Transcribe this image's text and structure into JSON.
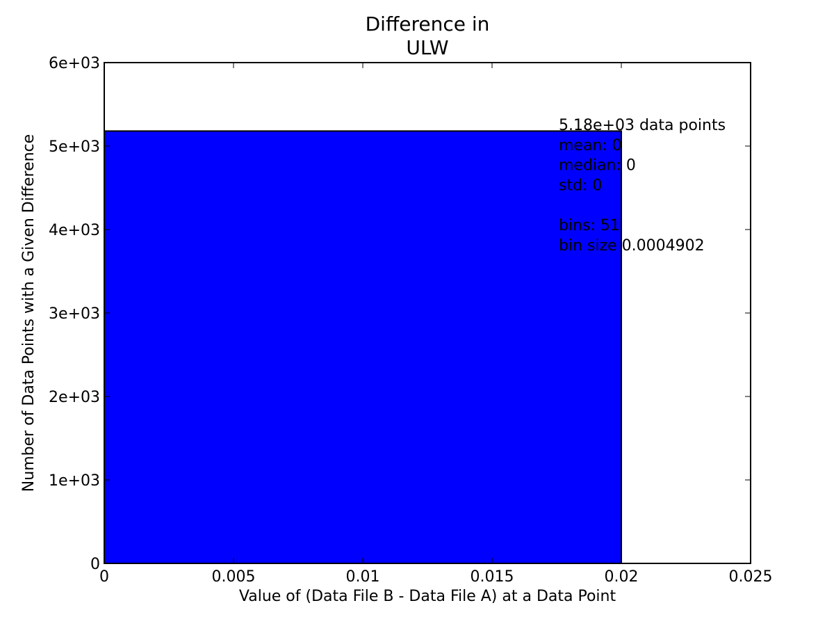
{
  "chart_data": {
    "type": "bar",
    "title_lines": [
      "Difference in",
      "ULW"
    ],
    "xlabel": "Value of (Data File B - Data File A) at a Data Point",
    "ylabel": "Number of Data Points with a Given Difference",
    "xlim": [
      0,
      0.025
    ],
    "ylim": [
      0,
      6000
    ],
    "x_ticks": [
      {
        "value": 0,
        "label": "0"
      },
      {
        "value": 0.005,
        "label": "0.005"
      },
      {
        "value": 0.01,
        "label": "0.01"
      },
      {
        "value": 0.015,
        "label": "0.015"
      },
      {
        "value": 0.02,
        "label": "0.02"
      },
      {
        "value": 0.025,
        "label": "0.025"
      }
    ],
    "y_ticks": [
      {
        "value": 0,
        "label": "0"
      },
      {
        "value": 1000,
        "label": "1e+03"
      },
      {
        "value": 2000,
        "label": "2e+03"
      },
      {
        "value": 3000,
        "label": "3e+03"
      },
      {
        "value": 4000,
        "label": "4e+03"
      },
      {
        "value": 5000,
        "label": "5e+03"
      },
      {
        "value": 6000,
        "label": "6e+03"
      }
    ],
    "bars": [
      {
        "x0": 0,
        "x1": 0.02,
        "value": 5180
      }
    ],
    "bar_color": "#0000ff",
    "grid": false,
    "stats_text": [
      "5.18e+03 data points",
      "mean: 0",
      "median: 0",
      "std: 0",
      "",
      "bins: 51",
      "bin size 0.0004902"
    ]
  }
}
